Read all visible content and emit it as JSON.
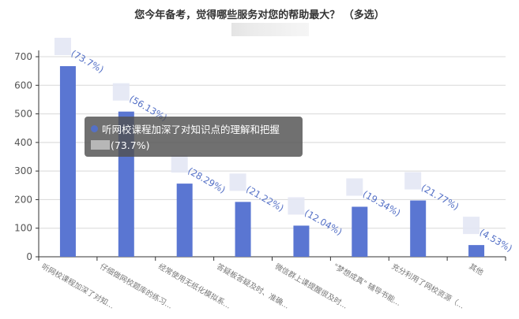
{
  "title": "您今年备考，觉得哪些服务对您的帮助最大？ （多选）",
  "tooltip": {
    "series_label": "听网校课程加深了对知识点的理解和把握",
    "value_label": "(73.7%)",
    "dot_color": "#5470c6"
  },
  "colors": {
    "bar": "#5a76d2",
    "label": "#5470c6",
    "grid": "#d8d8d8",
    "axis": "#333333"
  },
  "chart_data": {
    "type": "bar",
    "title": "您今年备考，觉得哪些服务对您的帮助最大？ （多选）",
    "xlabel": "",
    "ylabel": "",
    "ylim": [
      0,
      700
    ],
    "yticks": [
      0,
      100,
      200,
      300,
      400,
      500,
      600,
      700
    ],
    "grid": true,
    "categories": [
      "听网校课程加深了对知...",
      "仔细做网校题库的练习...",
      "经常使用无纸化模拟系...",
      "答疑板答疑及时、准确...",
      "微信群上课提醒很及时...",
      "\"梦想成真\" 辅导书能...",
      "充分利用了网校资源（...",
      "其他"
    ],
    "values": [
      667,
      508,
      256,
      192,
      109,
      175,
      197,
      41
    ],
    "data_labels": [
      "(73.7%)",
      "(56.13%)",
      "(28.29%)",
      "(21.22%)",
      "(12.04%)",
      "(19.34%)",
      "(21.77%)",
      "(4.53%)"
    ],
    "percentages": [
      73.7,
      56.13,
      28.29,
      21.22,
      12.04,
      19.34,
      21.77,
      4.53
    ]
  }
}
